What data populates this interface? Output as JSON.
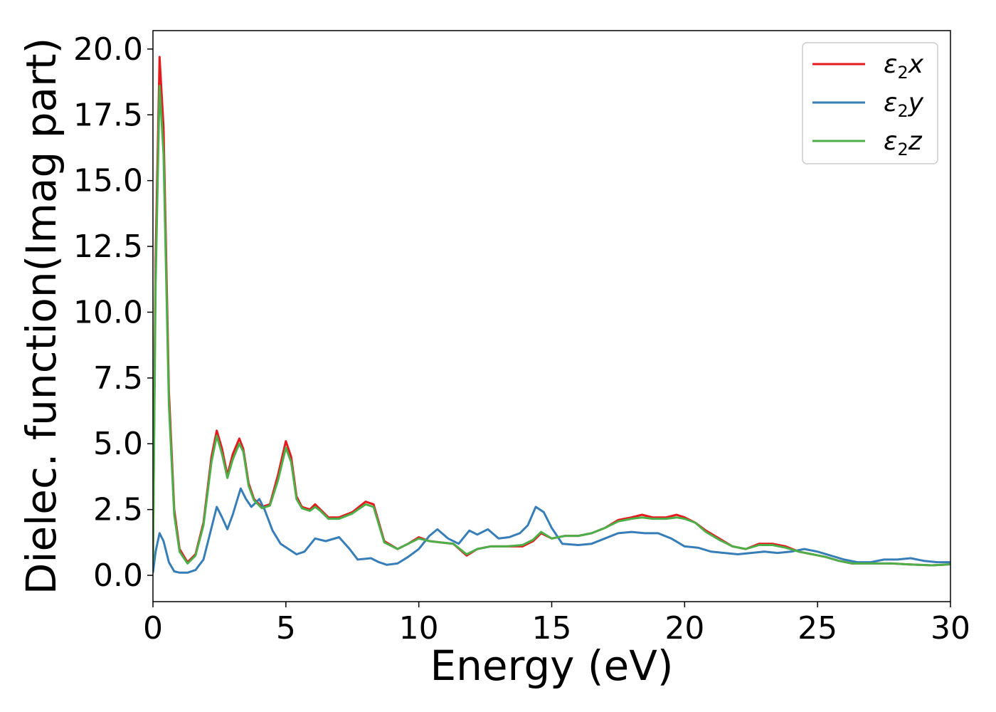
{
  "chart_data": {
    "type": "line",
    "title": "",
    "xlabel": "Energy (eV)",
    "ylabel": "Dielec. function(Imag part)",
    "xlim": [
      0,
      30
    ],
    "ylim": [
      -1.0,
      20.7
    ],
    "xticks": [
      0,
      5,
      10,
      15,
      20,
      25,
      30
    ],
    "xtick_labels": [
      "0",
      "5",
      "10",
      "15",
      "20",
      "25",
      "30"
    ],
    "yticks": [
      0,
      2.5,
      5,
      7.5,
      10,
      12.5,
      15,
      17.5,
      20
    ],
    "ytick_labels": [
      "0.0",
      "2.5",
      "5.0",
      "7.5",
      "10.0",
      "12.5",
      "15.0",
      "17.5",
      "20.0"
    ],
    "grid": false,
    "legend_position": "top-right",
    "series": [
      {
        "name": "ε2x",
        "legend_main": "ε",
        "legend_sub": "2",
        "legend_suffix": "x",
        "color": "#e41a1c",
        "points": [
          [
            0,
            0.5
          ],
          [
            0.1,
            12.0
          ],
          [
            0.25,
            19.7
          ],
          [
            0.4,
            17.0
          ],
          [
            0.6,
            7.0
          ],
          [
            0.8,
            2.5
          ],
          [
            1.0,
            1.0
          ],
          [
            1.3,
            0.5
          ],
          [
            1.6,
            0.8
          ],
          [
            1.9,
            2.0
          ],
          [
            2.2,
            4.5
          ],
          [
            2.4,
            5.5
          ],
          [
            2.6,
            4.8
          ],
          [
            2.8,
            3.8
          ],
          [
            3.0,
            4.6
          ],
          [
            3.25,
            5.2
          ],
          [
            3.4,
            4.8
          ],
          [
            3.6,
            3.5
          ],
          [
            3.8,
            2.9
          ],
          [
            4.1,
            2.6
          ],
          [
            4.4,
            2.7
          ],
          [
            4.7,
            3.8
          ],
          [
            5.0,
            5.1
          ],
          [
            5.2,
            4.5
          ],
          [
            5.4,
            3.0
          ],
          [
            5.6,
            2.6
          ],
          [
            5.9,
            2.5
          ],
          [
            6.1,
            2.7
          ],
          [
            6.3,
            2.5
          ],
          [
            6.6,
            2.2
          ],
          [
            7.0,
            2.2
          ],
          [
            7.5,
            2.4
          ],
          [
            8.0,
            2.8
          ],
          [
            8.3,
            2.7
          ],
          [
            8.7,
            1.3
          ],
          [
            9.2,
            1.0
          ],
          [
            9.6,
            1.2
          ],
          [
            10.0,
            1.45
          ],
          [
            10.4,
            1.3
          ],
          [
            10.8,
            1.25
          ],
          [
            11.3,
            1.2
          ],
          [
            11.8,
            0.75
          ],
          [
            12.2,
            1.0
          ],
          [
            12.7,
            1.1
          ],
          [
            13.3,
            1.1
          ],
          [
            13.9,
            1.1
          ],
          [
            14.3,
            1.3
          ],
          [
            14.6,
            1.6
          ],
          [
            15.0,
            1.4
          ],
          [
            15.5,
            1.5
          ],
          [
            16.0,
            1.5
          ],
          [
            16.5,
            1.6
          ],
          [
            17.0,
            1.8
          ],
          [
            17.5,
            2.1
          ],
          [
            18.0,
            2.2
          ],
          [
            18.4,
            2.3
          ],
          [
            18.8,
            2.2
          ],
          [
            19.3,
            2.2
          ],
          [
            19.7,
            2.3
          ],
          [
            20.0,
            2.2
          ],
          [
            20.4,
            2.0
          ],
          [
            20.8,
            1.7
          ],
          [
            21.3,
            1.4
          ],
          [
            21.8,
            1.1
          ],
          [
            22.3,
            1.0
          ],
          [
            22.8,
            1.2
          ],
          [
            23.3,
            1.2
          ],
          [
            23.8,
            1.1
          ],
          [
            24.3,
            0.9
          ],
          [
            24.8,
            0.8
          ],
          [
            25.3,
            0.7
          ],
          [
            25.8,
            0.55
          ],
          [
            26.3,
            0.45
          ],
          [
            26.8,
            0.45
          ],
          [
            27.3,
            0.45
          ],
          [
            27.8,
            0.45
          ],
          [
            28.3,
            0.42
          ],
          [
            28.8,
            0.4
          ],
          [
            29.3,
            0.38
          ],
          [
            29.7,
            0.4
          ],
          [
            30.0,
            0.42
          ]
        ]
      },
      {
        "name": "ε2y",
        "legend_main": "ε",
        "legend_sub": "2",
        "legend_suffix": "y",
        "color": "#377eb8",
        "points": [
          [
            0,
            0.1
          ],
          [
            0.1,
            0.9
          ],
          [
            0.25,
            1.6
          ],
          [
            0.4,
            1.3
          ],
          [
            0.6,
            0.5
          ],
          [
            0.8,
            0.15
          ],
          [
            1.0,
            0.1
          ],
          [
            1.3,
            0.1
          ],
          [
            1.6,
            0.2
          ],
          [
            1.9,
            0.6
          ],
          [
            2.2,
            1.8
          ],
          [
            2.4,
            2.6
          ],
          [
            2.6,
            2.2
          ],
          [
            2.8,
            1.75
          ],
          [
            3.0,
            2.3
          ],
          [
            3.3,
            3.3
          ],
          [
            3.5,
            2.9
          ],
          [
            3.7,
            2.6
          ],
          [
            4.0,
            2.9
          ],
          [
            4.2,
            2.5
          ],
          [
            4.5,
            1.7
          ],
          [
            4.8,
            1.2
          ],
          [
            5.1,
            1.0
          ],
          [
            5.4,
            0.8
          ],
          [
            5.7,
            0.9
          ],
          [
            6.1,
            1.4
          ],
          [
            6.5,
            1.3
          ],
          [
            7.0,
            1.45
          ],
          [
            7.4,
            1.0
          ],
          [
            7.7,
            0.6
          ],
          [
            8.2,
            0.65
          ],
          [
            8.5,
            0.5
          ],
          [
            8.8,
            0.4
          ],
          [
            9.2,
            0.45
          ],
          [
            9.6,
            0.7
          ],
          [
            10.0,
            1.0
          ],
          [
            10.4,
            1.5
          ],
          [
            10.7,
            1.75
          ],
          [
            11.1,
            1.4
          ],
          [
            11.5,
            1.2
          ],
          [
            11.9,
            1.7
          ],
          [
            12.2,
            1.55
          ],
          [
            12.6,
            1.75
          ],
          [
            13.0,
            1.4
          ],
          [
            13.4,
            1.45
          ],
          [
            13.8,
            1.6
          ],
          [
            14.1,
            1.9
          ],
          [
            14.4,
            2.6
          ],
          [
            14.7,
            2.4
          ],
          [
            15.0,
            1.8
          ],
          [
            15.4,
            1.2
          ],
          [
            16.0,
            1.15
          ],
          [
            16.5,
            1.2
          ],
          [
            17.0,
            1.4
          ],
          [
            17.5,
            1.6
          ],
          [
            18.0,
            1.65
          ],
          [
            18.5,
            1.6
          ],
          [
            19.0,
            1.6
          ],
          [
            19.5,
            1.4
          ],
          [
            20.0,
            1.1
          ],
          [
            20.5,
            1.05
          ],
          [
            21.0,
            0.9
          ],
          [
            21.5,
            0.85
          ],
          [
            22.0,
            0.8
          ],
          [
            22.5,
            0.85
          ],
          [
            23.0,
            0.9
          ],
          [
            23.5,
            0.85
          ],
          [
            24.0,
            0.9
          ],
          [
            24.5,
            1.0
          ],
          [
            25.0,
            0.9
          ],
          [
            25.5,
            0.75
          ],
          [
            26.0,
            0.6
          ],
          [
            26.5,
            0.5
          ],
          [
            27.0,
            0.5
          ],
          [
            27.5,
            0.6
          ],
          [
            28.0,
            0.6
          ],
          [
            28.5,
            0.65
          ],
          [
            29.0,
            0.55
          ],
          [
            29.5,
            0.5
          ],
          [
            30.0,
            0.5
          ]
        ]
      },
      {
        "name": "ε2z",
        "legend_main": "ε",
        "legend_sub": "2",
        "legend_suffix": "z",
        "color": "#4daf4a",
        "points": [
          [
            0,
            0.5
          ],
          [
            0.1,
            11.0
          ],
          [
            0.25,
            18.6
          ],
          [
            0.4,
            16.0
          ],
          [
            0.6,
            6.5
          ],
          [
            0.8,
            2.3
          ],
          [
            1.0,
            0.9
          ],
          [
            1.3,
            0.45
          ],
          [
            1.6,
            0.75
          ],
          [
            1.9,
            1.9
          ],
          [
            2.2,
            4.3
          ],
          [
            2.4,
            5.3
          ],
          [
            2.6,
            4.6
          ],
          [
            2.8,
            3.7
          ],
          [
            3.0,
            4.4
          ],
          [
            3.25,
            5.0
          ],
          [
            3.4,
            4.7
          ],
          [
            3.6,
            3.4
          ],
          [
            3.8,
            2.85
          ],
          [
            4.1,
            2.55
          ],
          [
            4.4,
            2.65
          ],
          [
            4.7,
            3.6
          ],
          [
            5.0,
            4.85
          ],
          [
            5.2,
            4.3
          ],
          [
            5.4,
            2.9
          ],
          [
            5.6,
            2.55
          ],
          [
            5.9,
            2.45
          ],
          [
            6.1,
            2.6
          ],
          [
            6.3,
            2.45
          ],
          [
            6.6,
            2.15
          ],
          [
            7.0,
            2.15
          ],
          [
            7.5,
            2.35
          ],
          [
            8.0,
            2.7
          ],
          [
            8.3,
            2.6
          ],
          [
            8.7,
            1.25
          ],
          [
            9.2,
            1.0
          ],
          [
            9.6,
            1.2
          ],
          [
            10.0,
            1.4
          ],
          [
            10.4,
            1.3
          ],
          [
            10.8,
            1.25
          ],
          [
            11.3,
            1.2
          ],
          [
            11.8,
            0.8
          ],
          [
            12.2,
            1.0
          ],
          [
            12.7,
            1.1
          ],
          [
            13.3,
            1.1
          ],
          [
            13.9,
            1.15
          ],
          [
            14.3,
            1.35
          ],
          [
            14.6,
            1.65
          ],
          [
            15.0,
            1.4
          ],
          [
            15.5,
            1.5
          ],
          [
            16.0,
            1.5
          ],
          [
            16.5,
            1.6
          ],
          [
            17.0,
            1.8
          ],
          [
            17.5,
            2.05
          ],
          [
            18.0,
            2.15
          ],
          [
            18.4,
            2.2
          ],
          [
            18.8,
            2.15
          ],
          [
            19.3,
            2.15
          ],
          [
            19.7,
            2.2
          ],
          [
            20.0,
            2.15
          ],
          [
            20.4,
            2.0
          ],
          [
            20.8,
            1.65
          ],
          [
            21.3,
            1.35
          ],
          [
            21.8,
            1.1
          ],
          [
            22.3,
            1.0
          ],
          [
            22.8,
            1.15
          ],
          [
            23.3,
            1.15
          ],
          [
            23.8,
            1.05
          ],
          [
            24.3,
            0.9
          ],
          [
            24.8,
            0.8
          ],
          [
            25.3,
            0.7
          ],
          [
            25.8,
            0.55
          ],
          [
            26.3,
            0.45
          ],
          [
            26.8,
            0.45
          ],
          [
            27.3,
            0.45
          ],
          [
            27.8,
            0.45
          ],
          [
            28.3,
            0.42
          ],
          [
            28.8,
            0.4
          ],
          [
            29.3,
            0.38
          ],
          [
            29.7,
            0.4
          ],
          [
            30.0,
            0.42
          ]
        ]
      }
    ]
  }
}
